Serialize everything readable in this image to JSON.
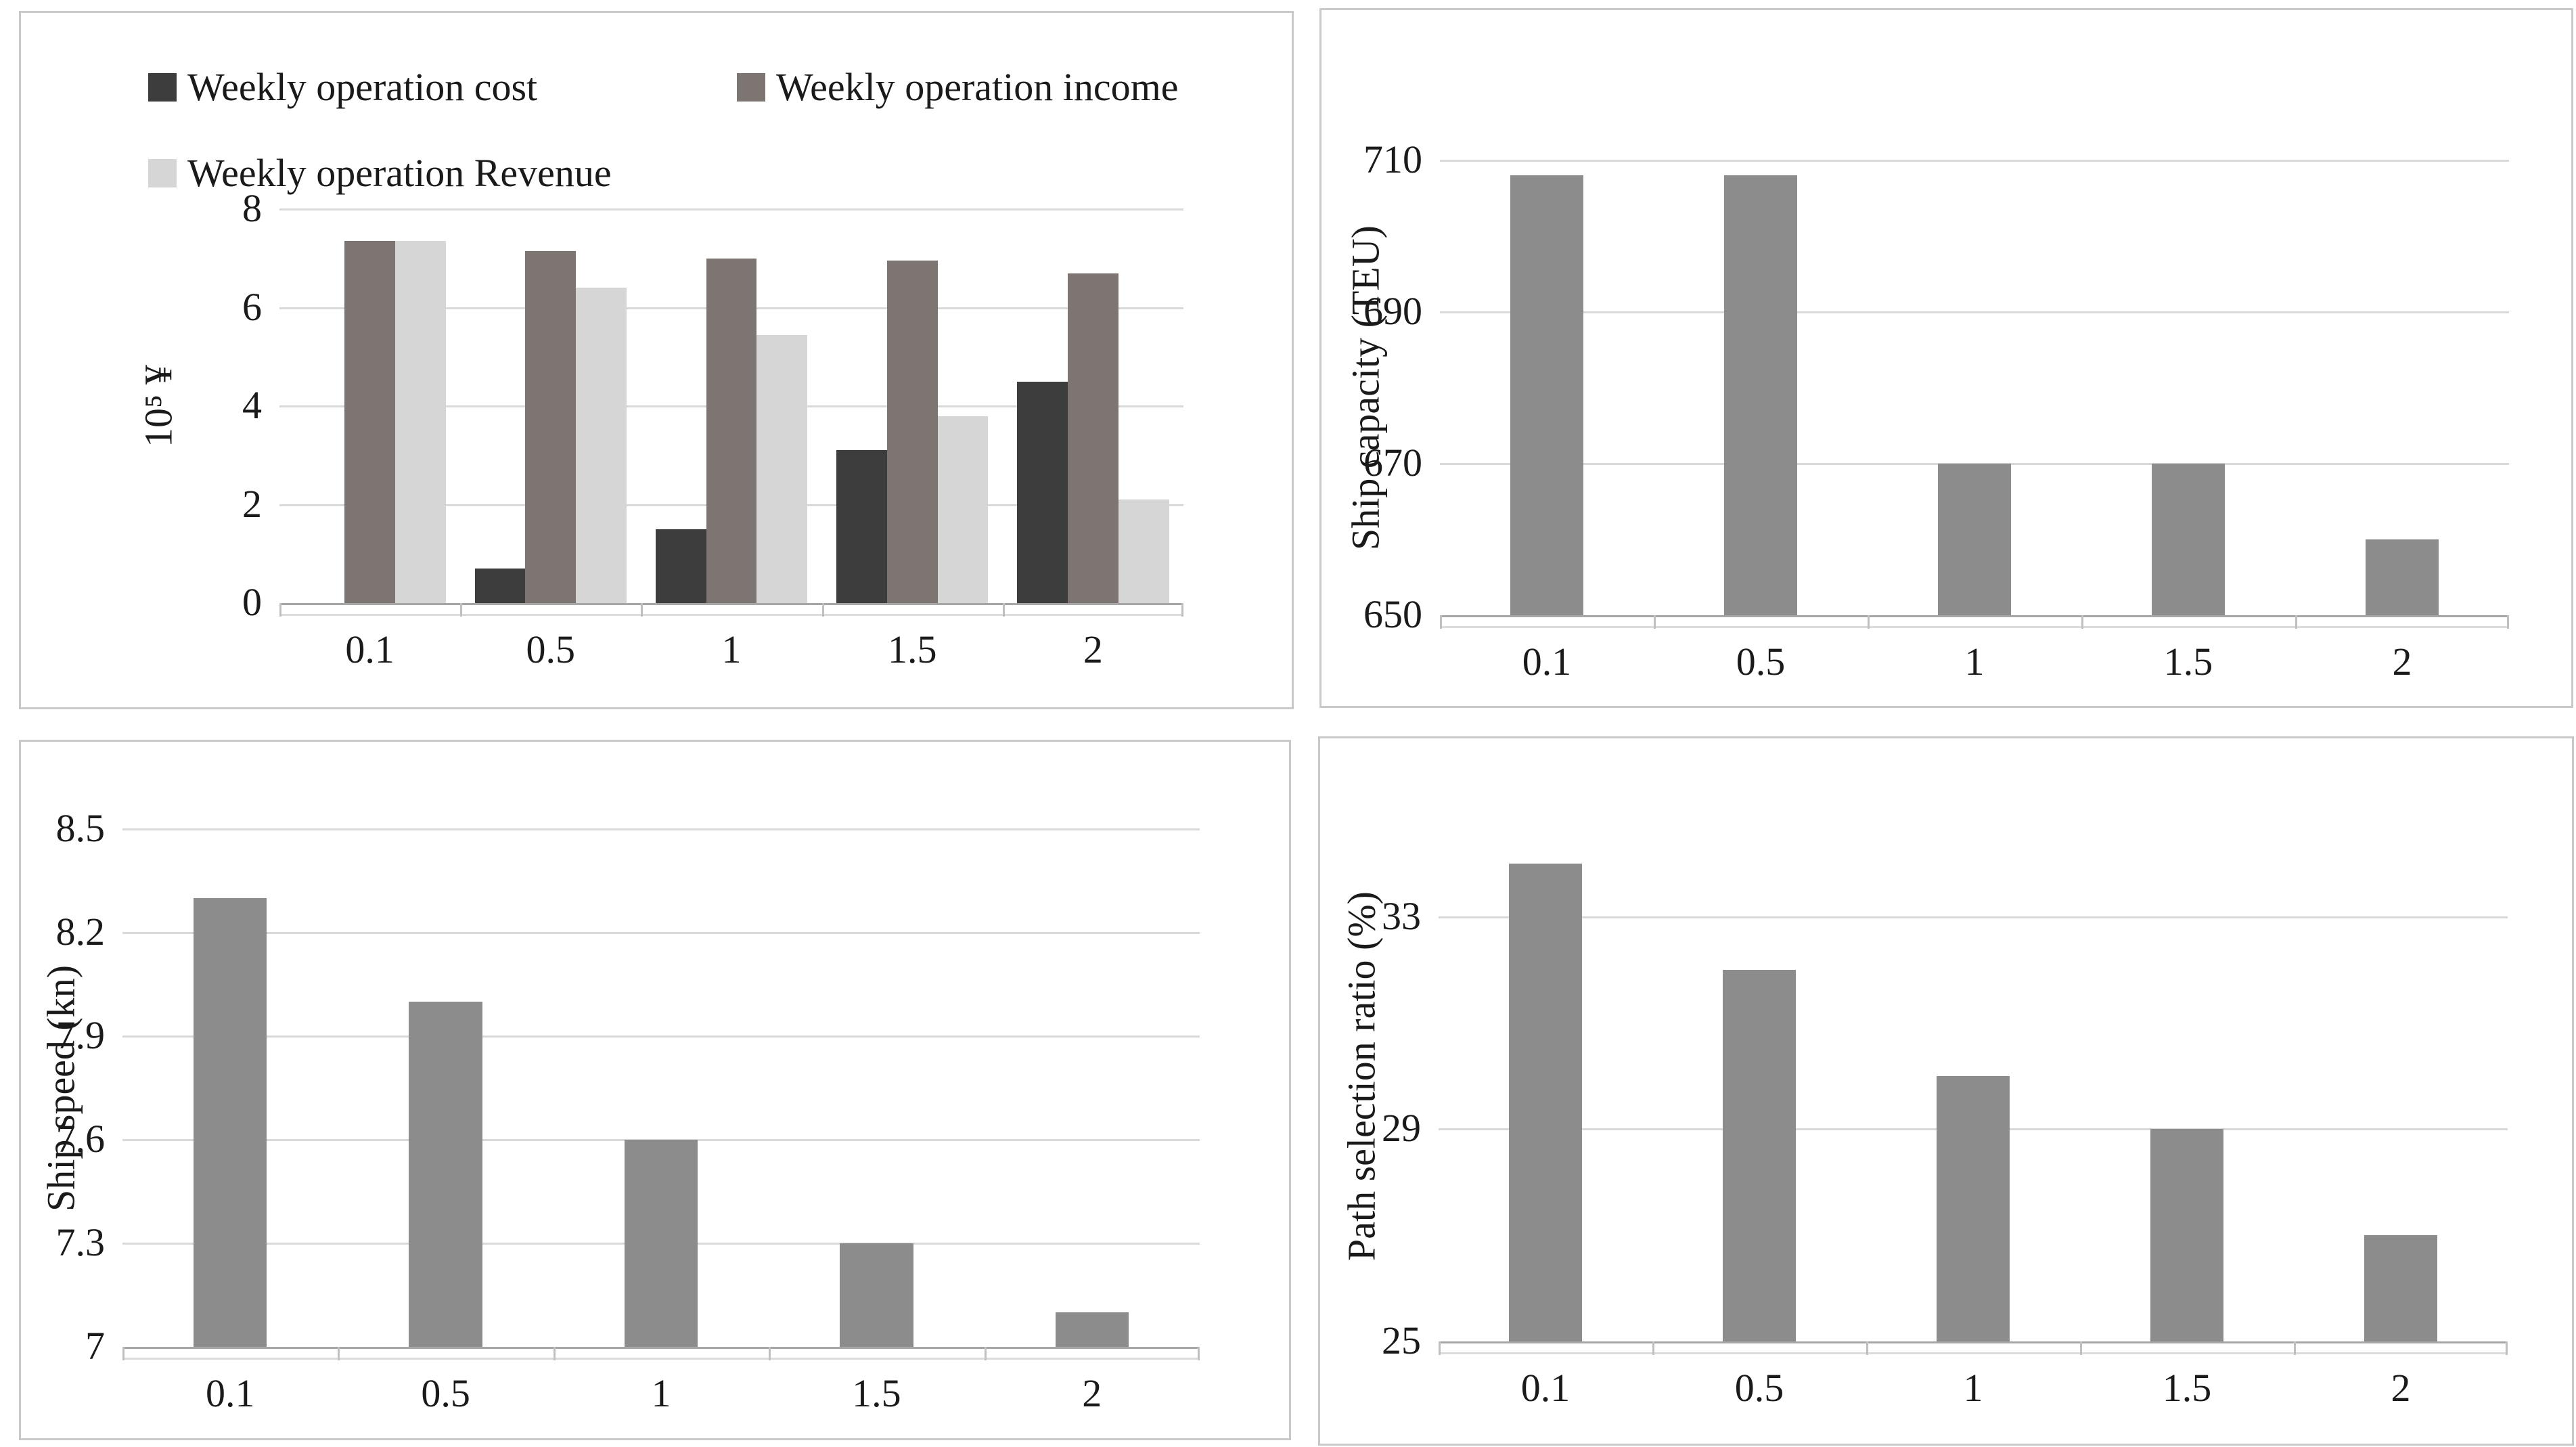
{
  "page": {
    "background": "#ffffff",
    "panel_border_color": "#c9c9c9",
    "gridline_color": "#d9d9d9",
    "axis_line_color": "#a6a6a6",
    "text_color": "#1a1a1a"
  },
  "chart_data": [
    {
      "name": "weekly-operation-chart",
      "type": "bar",
      "title": "",
      "xlabel": "",
      "ylabel": "10⁵ ¥",
      "categories": [
        "0.1",
        "0.5",
        "1",
        "1.5",
        "2"
      ],
      "ymin": 0,
      "ymax": 8,
      "yticks": [
        "0",
        "2",
        "4",
        "6",
        "8"
      ],
      "gridlines": [
        2,
        4,
        6,
        8
      ],
      "grid": true,
      "legend_position": "top",
      "series": [
        {
          "name": "Weekly operation cost",
          "color": "#3d3d3d",
          "values": [
            0,
            0.7,
            1.5,
            3.1,
            4.5
          ]
        },
        {
          "name": "Weekly operation income",
          "color": "#7d7571",
          "values": [
            7.35,
            7.15,
            7.0,
            6.95,
            6.7
          ]
        },
        {
          "name": "Weekly operation Revenue",
          "color": "#d6d6d6",
          "values": [
            7.35,
            6.4,
            5.45,
            3.8,
            2.1
          ]
        }
      ]
    },
    {
      "name": "ship-capacity-chart",
      "type": "bar",
      "title": "",
      "xlabel": "",
      "ylabel": "Ship capacity (TEU)",
      "categories": [
        "0.1",
        "0.5",
        "1",
        "1.5",
        "2"
      ],
      "ymin": 650,
      "ymax": 710,
      "yticks": [
        "650",
        "670",
        "690",
        "710"
      ],
      "gridlines": [
        670,
        690,
        710
      ],
      "grid": true,
      "legend_position": "none",
      "series": [
        {
          "name": "Ship capacity",
          "color": "#8c8c8c",
          "values": [
            708,
            708,
            670,
            670,
            660
          ]
        }
      ]
    },
    {
      "name": "ship-speed-chart",
      "type": "bar",
      "title": "",
      "xlabel": "",
      "ylabel": "Ship speed (kn)",
      "categories": [
        "0.1",
        "0.5",
        "1",
        "1.5",
        "2"
      ],
      "ymin": 7,
      "ymax": 8.5,
      "yticks": [
        "7",
        "7.3",
        "7.6",
        "7.9",
        "8.2",
        "8.5"
      ],
      "gridlines": [
        7.3,
        7.6,
        7.9,
        8.2,
        8.5
      ],
      "grid": true,
      "legend_position": "none",
      "series": [
        {
          "name": "Ship speed",
          "color": "#8c8c8c",
          "values": [
            8.3,
            8.0,
            7.6,
            7.3,
            7.1
          ]
        }
      ]
    },
    {
      "name": "path-selection-chart",
      "type": "bar",
      "title": "",
      "xlabel": "",
      "ylabel": "Path selection ratio (%)",
      "categories": [
        "0.1",
        "0.5",
        "1",
        "1.5",
        "2"
      ],
      "ymin": 25,
      "ymax": 35,
      "yticks": [
        "25",
        "29",
        "33"
      ],
      "gridlines": [
        29,
        33
      ],
      "grid": true,
      "legend_position": "none",
      "series": [
        {
          "name": "Path selection ratio",
          "color": "#8c8c8c",
          "values": [
            34,
            32,
            30,
            29,
            27
          ]
        }
      ]
    }
  ]
}
